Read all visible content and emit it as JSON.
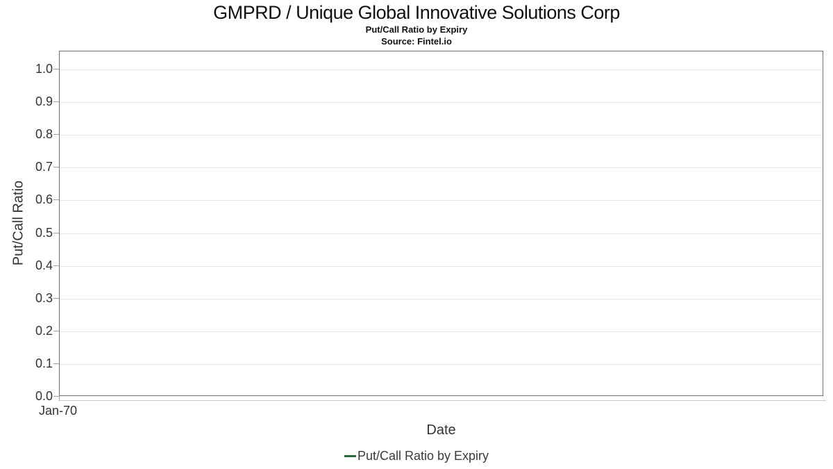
{
  "chart_data": {
    "type": "line",
    "title": "GMPRD / Unique Global Innovative Solutions Corp",
    "subtitle": "Put/Call Ratio by Expiry",
    "source": "Source: Fintel.io",
    "xlabel": "Date",
    "ylabel": "Put/Call Ratio",
    "x_tick_labels": [
      "Jan-70"
    ],
    "y_tick_labels": [
      "0.0",
      "0.1",
      "0.2",
      "0.3",
      "0.4",
      "0.5",
      "0.6",
      "0.7",
      "0.8",
      "0.9",
      "1.0"
    ],
    "ylim": [
      0.0,
      1.05
    ],
    "grid": "horizontal",
    "legend_position": "bottom",
    "series": [
      {
        "name": "Put/Call Ratio by Expiry",
        "color": "#276b3e",
        "x": [],
        "values": []
      }
    ]
  },
  "colors": {
    "series_green": "#276b3e",
    "plot_border": "#6f6f6f",
    "gridline": "#e5e5e5",
    "axis_line": "#c9c9c9",
    "tick_mark": "#a0a0a0",
    "title_text": "#111111",
    "axis_text": "#333333",
    "legend_text": "#3a3a3a"
  }
}
